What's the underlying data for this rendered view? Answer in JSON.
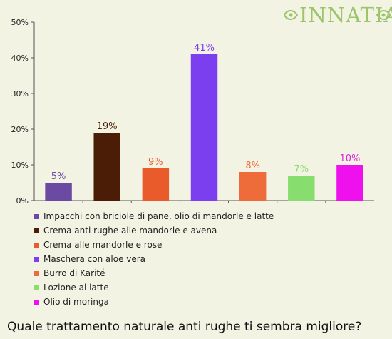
{
  "logo": {
    "text": "INNATIA",
    "color": "#9cc46b"
  },
  "question": "Quale trattamento naturale anti rughe ti sembra migliore?",
  "chart_data": {
    "type": "bar",
    "categories": [
      "Impacchi con briciole di pane, olio di mandorle e latte",
      "Crema anti rughe alle mandorle e avena",
      "Crema alle mandorle e rose",
      "Maschera con aloe vera",
      "Burro di Karité",
      "Lozione al latte",
      "Olio di moringa"
    ],
    "values": [
      5,
      19,
      9,
      41,
      8,
      7,
      10
    ],
    "data_labels": [
      "5%",
      "19%",
      "9%",
      "41%",
      "8%",
      "7%",
      "10%"
    ],
    "colors": [
      "#6a4aa2",
      "#4b1d06",
      "#ea5b2c",
      "#7b3ff0",
      "#ee6b3a",
      "#88dd6f",
      "#ee11ee"
    ],
    "label_colors": [
      "#6a4aa2",
      "#4b1d06",
      "#ea5b2c",
      "#7b3ff0",
      "#ee6b3a",
      "#88dd6f",
      "#dd22dd"
    ],
    "yticks": [
      "0%",
      "10%",
      "20%",
      "30%",
      "40%",
      "50%"
    ],
    "ylim": [
      0,
      50
    ],
    "grid": false,
    "legend_position": "bottom"
  }
}
